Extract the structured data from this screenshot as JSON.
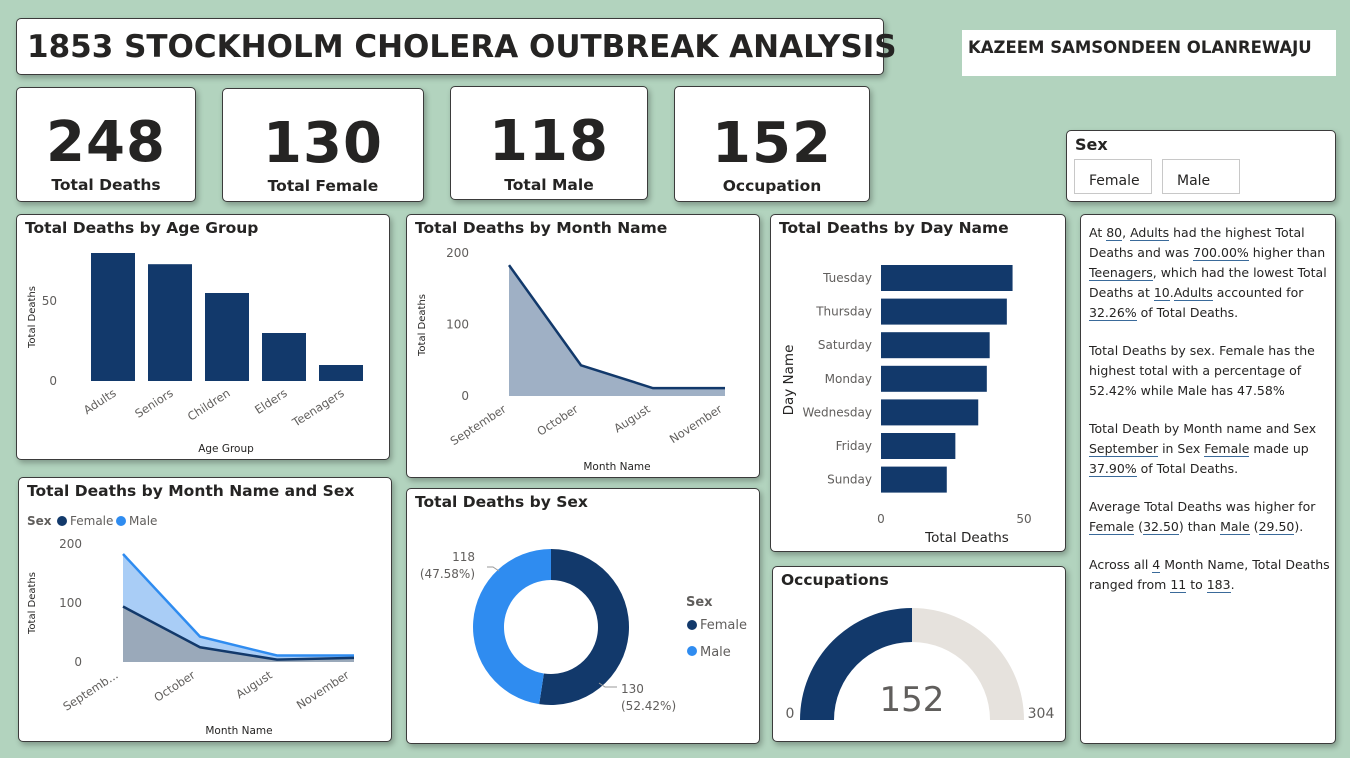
{
  "header": {
    "title": "1853 STOCKHOLM CHOLERA OUTBREAK ANALYSIS",
    "author": "KAZEEM SAMSONDEEN OLANREWAJU"
  },
  "kpis": [
    {
      "value": "248",
      "label": "Total Deaths"
    },
    {
      "value": "130",
      "label": "Total Female"
    },
    {
      "value": "118",
      "label": "Total Male"
    },
    {
      "value": "152",
      "label": "Occupation"
    }
  ],
  "slicer": {
    "title": "Sex",
    "options": [
      "Female",
      "Male"
    ]
  },
  "colors": {
    "navy": "#12396b",
    "blue": "#2f8cf0",
    "gauge_bg": "#e6e2dd",
    "area_fill": "#9fb0c5"
  },
  "chart_data": [
    {
      "id": "age",
      "type": "bar",
      "title": "Total Deaths by Age Group",
      "xlabel": "Age Group",
      "ylabel": "Total Deaths",
      "categories": [
        "Adults",
        "Seniors",
        "Children",
        "Elders",
        "Teenagers"
      ],
      "values": [
        80,
        73,
        55,
        30,
        10
      ],
      "ylim": [
        0,
        80
      ],
      "yticks": [
        "0",
        "50"
      ]
    },
    {
      "id": "month",
      "type": "area",
      "title": "Total Deaths by Month Name",
      "xlabel": "Month Name",
      "ylabel": "Total Deaths",
      "categories": [
        "September",
        "October",
        "August",
        "November"
      ],
      "values": [
        183,
        43,
        11,
        11
      ],
      "ylim": [
        0,
        200
      ],
      "yticks": [
        "0",
        "100",
        "200"
      ]
    },
    {
      "id": "day",
      "type": "bar",
      "title": "Total Deaths by Day Name",
      "xlabel": "Total Deaths",
      "ylabel": "Day Name",
      "categories": [
        "Tuesday",
        "Thursday",
        "Saturday",
        "Monday",
        "Wednesday",
        "Friday",
        "Sunday"
      ],
      "values": [
        46,
        44,
        38,
        37,
        34,
        26,
        23
      ],
      "xlim": [
        0,
        50
      ],
      "xticks": [
        "0",
        "50"
      ]
    },
    {
      "id": "monthsex",
      "type": "area",
      "title": "Total Deaths by Month Name and Sex",
      "xlabel": "Month Name",
      "ylabel": "Total Deaths",
      "legend_title": "Sex",
      "categories": [
        "Septemb...",
        "October",
        "August",
        "November"
      ],
      "series": [
        {
          "name": "Female",
          "values": [
            94,
            25,
            4,
            7
          ]
        },
        {
          "name": "Male",
          "values": [
            89,
            18,
            7,
            4
          ]
        }
      ],
      "ylim": [
        0,
        200
      ],
      "yticks": [
        "0",
        "100",
        "200"
      ]
    },
    {
      "id": "sex",
      "type": "pie",
      "title": "Total Deaths by Sex",
      "legend_title": "Sex",
      "slices": [
        {
          "name": "Female",
          "value": 130,
          "pct": 52.42,
          "label": "130",
          "pct_label": "(52.42%)"
        },
        {
          "name": "Male",
          "value": 118,
          "pct": 47.58,
          "label": "118",
          "pct_label": "(47.58%)"
        }
      ]
    },
    {
      "id": "occupations",
      "type": "gauge",
      "title": "Occupations",
      "value": 152,
      "min": 0,
      "max": 304,
      "value_label": "152",
      "min_label": "0",
      "max_label": "304"
    }
  ],
  "narrative": {
    "p1": {
      "t1": "At ",
      "v1": "80",
      "t2": ", ",
      "v2": "Adults",
      "t3": " had the highest Total Deaths and was ",
      "v3": "700.00%",
      "t4": " higher than ",
      "v4": "Teenagers",
      "t5": ", which had the lowest Total Deaths at ",
      "v5": "10",
      "t6": ".",
      "v6": "Adults",
      "t7": " accounted for ",
      "v7": "32.26%",
      "t8": " of Total Deaths."
    },
    "p2": "Total Deaths by sex. Female has the highest total with a percentage of 52.42% while Male has 47.58%",
    "p3": {
      "t1": " Total Death by Month name and Sex ",
      "v1": "September",
      "t2": " in Sex ",
      "v2": "Female",
      "t3": " made up ",
      "v3": "37.90%",
      "t4": " of Total Deaths."
    },
    "p4": {
      "t1": "Average Total Deaths was higher for ",
      "v1": "Female",
      "t2": " (",
      "v2": "32.50",
      "t3": ") than ",
      "v3": "Male",
      "t4": " (",
      "v4": "29.50",
      "t5": ")."
    },
    "p5": {
      "t1": "Across all ",
      "v1": "4",
      "t2": " Month Name, Total Deaths ranged from ",
      "v2": "11",
      "t3": " to ",
      "v3": "183",
      "t4": "."
    }
  }
}
